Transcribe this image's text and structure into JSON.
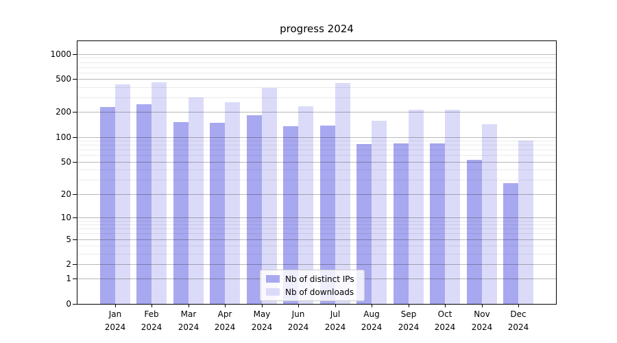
{
  "title": "progress 2024",
  "colors": {
    "ips": "#a8a8f0",
    "downloads": "#dbdbf9",
    "grid_major": "rgba(0,0,0,0.28)",
    "grid_minor": "rgba(0,0,0,0.08)",
    "spine": "#000000",
    "legend_border": "#cccccc"
  },
  "legend": {
    "items": [
      {
        "label": "Nb of distinct IPs",
        "series": "ips"
      },
      {
        "label": "Nb of downloads",
        "series": "downloads"
      }
    ]
  },
  "chart_data": {
    "type": "bar",
    "title": "progress 2024",
    "xlabel": "",
    "ylabel": "",
    "year_label": "2024",
    "months": [
      "Jan",
      "Feb",
      "Mar",
      "Apr",
      "May",
      "Jun",
      "Jul",
      "Aug",
      "Sep",
      "Oct",
      "Nov",
      "Dec"
    ],
    "categories": [
      "Jan 2024",
      "Feb 2024",
      "Mar 2024",
      "Apr 2024",
      "May 2024",
      "Jun 2024",
      "Jul 2024",
      "Aug 2024",
      "Sep 2024",
      "Oct 2024",
      "Nov 2024",
      "Dec 2024"
    ],
    "series": [
      {
        "name": "Nb of distinct IPs",
        "values": [
          231,
          247,
          151,
          150,
          182,
          134,
          138,
          82,
          83,
          83,
          53,
          27
        ]
      },
      {
        "name": "Nb of downloads",
        "values": [
          432,
          455,
          300,
          265,
          392,
          234,
          445,
          158,
          215,
          215,
          143,
          91
        ]
      }
    ],
    "yscale": "symlog-log1p",
    "ylim": [
      0,
      1430
    ],
    "y_major_ticks": [
      1000,
      500,
      200,
      100,
      50,
      20,
      10,
      5,
      2,
      1,
      0
    ],
    "y_minor_ticks": [
      900,
      800,
      700,
      600,
      400,
      300,
      90,
      80,
      70,
      60,
      40,
      30,
      9,
      8,
      7,
      6,
      4,
      3
    ],
    "grid": true,
    "legend_position": "inside lower-center"
  }
}
